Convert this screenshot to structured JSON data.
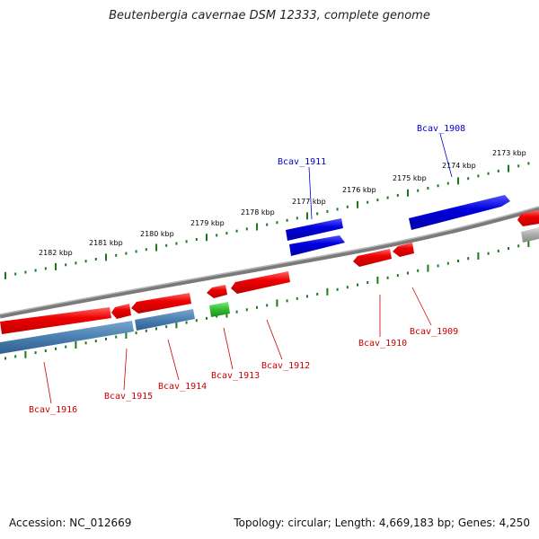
{
  "title": "Beutenbergia cavernae DSM 12333, complete genome",
  "footer": {
    "accession": "Accession: NC_012669",
    "info": "Topology: circular; Length: 4,669,183 bp; Genes: 4,250"
  },
  "scale_labels": [
    "2182 kbp",
    "2181 kbp",
    "2180 kbp",
    "2179 kbp",
    "2178 kbp",
    "2177 kbp",
    "2176 kbp",
    "2175 kbp",
    "2174 kbp",
    "2173 kbp"
  ],
  "genes": [
    {
      "id": "Bcav_1916",
      "strand": "reverse",
      "color": "#cc0000"
    },
    {
      "id": "Bcav_1915",
      "strand": "reverse",
      "color": "#cc0000"
    },
    {
      "id": "Bcav_1914",
      "strand": "reverse",
      "color": "#cc0000"
    },
    {
      "id": "Bcav_1913",
      "strand": "reverse",
      "color": "#cc0000"
    },
    {
      "id": "Bcav_1912",
      "strand": "reverse",
      "color": "#cc0000"
    },
    {
      "id": "Bcav_1911",
      "strand": "forward",
      "color": "#0000cc"
    },
    {
      "id": "Bcav_1910",
      "strand": "reverse",
      "color": "#cc0000"
    },
    {
      "id": "Bcav_1909",
      "strand": "reverse",
      "color": "#cc0000"
    },
    {
      "id": "Bcav_1908",
      "strand": "forward",
      "color": "#0000cc"
    }
  ],
  "colors": {
    "forward": "#0000dd",
    "reverse": "#ee0000",
    "tick": "#1a7a1a",
    "backbone": "#808080",
    "steel": "#4a7fb0",
    "green_feature": "#33bb33",
    "grey_feature": "#b0b0b0"
  }
}
